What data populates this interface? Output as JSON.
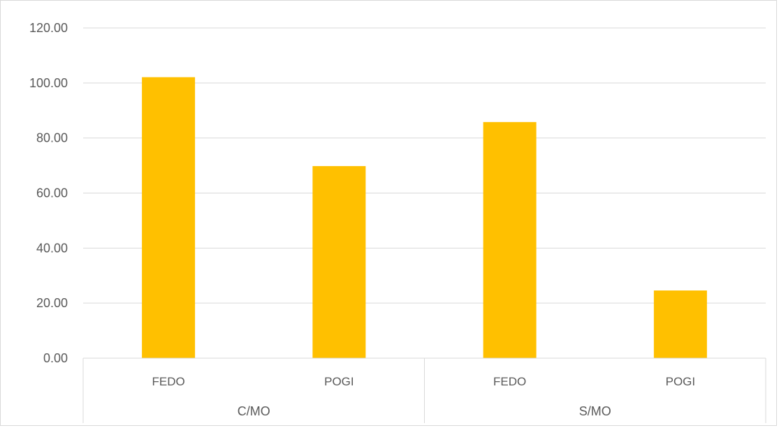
{
  "chart_data": {
    "type": "bar",
    "title": "",
    "xlabel": "",
    "ylabel": "",
    "ylim": [
      0,
      120
    ],
    "y_ticks": [
      "0.00",
      "20.00",
      "40.00",
      "60.00",
      "80.00",
      "100.00",
      "120.00"
    ],
    "grid": true,
    "legend": "none",
    "bar_color": "#FFC000",
    "groups": [
      {
        "label": "C/MO",
        "categories": [
          "FEDO",
          "POGI"
        ]
      },
      {
        "label": "S/MO",
        "categories": [
          "FEDO",
          "POGI"
        ]
      }
    ],
    "categories": [
      "FEDO",
      "POGI",
      "FEDO",
      "POGI"
    ],
    "values": [
      102.1,
      69.8,
      85.8,
      24.6
    ]
  }
}
